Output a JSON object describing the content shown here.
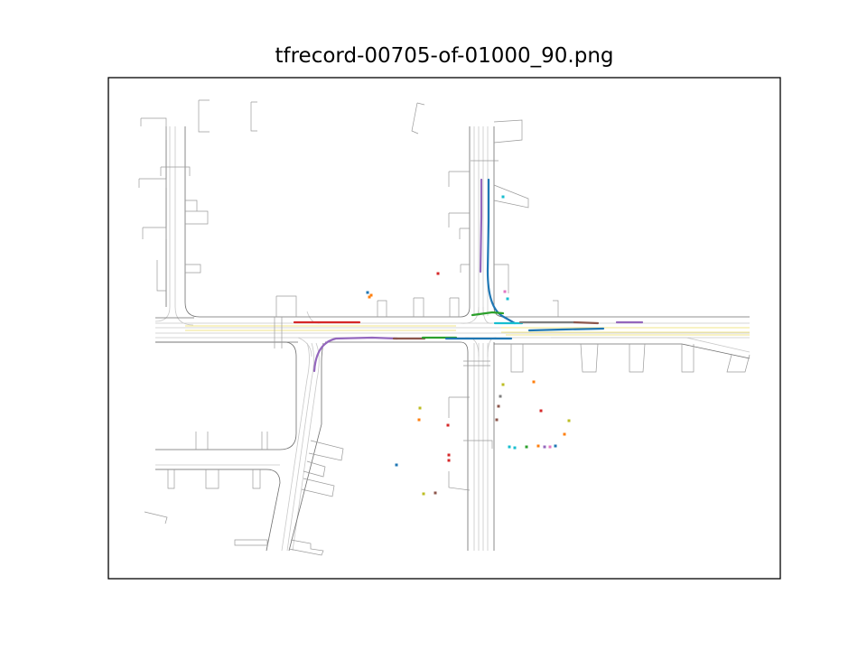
{
  "figure": {
    "title": "tfrecord-00705-of-01000_90.png"
  },
  "colors": {
    "road_edge": "#555555",
    "lane": "#bdbdbd",
    "center_line": "#f2e58a",
    "axes_frame": "#000000",
    "palette": [
      "#1f77b4",
      "#ff7f0e",
      "#2ca02c",
      "#d62728",
      "#9467bd",
      "#8c564b",
      "#e377c2",
      "#7f7f7f",
      "#bcbd22",
      "#17becf"
    ]
  },
  "chart_data": {
    "type": "scatter",
    "description_kind": "driving-scene map with agent trajectories",
    "axes": {
      "ticks": "hidden",
      "grid": false,
      "legend": "none"
    },
    "trajectories": [
      {
        "color": "#9467bd"
      },
      {
        "color": "#1f77b4"
      },
      {
        "color": "#d62728"
      },
      {
        "color": "#2ca02c"
      },
      {
        "color": "#17becf"
      },
      {
        "color": "#7f7f7f"
      },
      {
        "color": "#8c564b"
      },
      {
        "color": "#1f77b4"
      },
      {
        "color": "#9467bd"
      },
      {
        "color": "#9467bd"
      },
      {
        "color": "#8c564b"
      },
      {
        "color": "#2ca02c"
      },
      {
        "color": "#1f77b4"
      }
    ],
    "static_agents_count": 36
  }
}
